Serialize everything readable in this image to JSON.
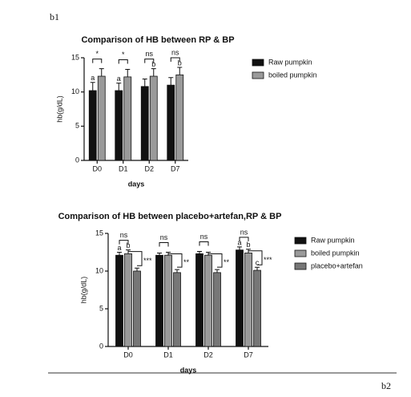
{
  "figure_label_top": "b1",
  "figure_label_bottom": "b2",
  "chart_data": [
    {
      "type": "bar",
      "title": "Comparison of HB between RP & BP",
      "y_label": "hb(g/dL)",
      "x_label": "days",
      "categories": [
        "D0",
        "D1",
        "D2",
        "D7"
      ],
      "series": [
        {
          "name": "Raw pumpkin",
          "color": "#111111",
          "values": [
            10.2,
            10.2,
            10.8,
            11.0
          ],
          "errors": [
            1.2,
            1.1,
            1.1,
            1.1
          ],
          "letters": [
            "a",
            "a",
            null,
            null
          ]
        },
        {
          "name": "boiled pumpkin",
          "color": "#9a9a9a",
          "values": [
            12.3,
            12.2,
            12.3,
            12.5
          ],
          "errors": [
            1.1,
            1.1,
            1.1,
            1.1
          ],
          "letters": [
            null,
            null,
            "b",
            "b"
          ]
        }
      ],
      "significance": [
        "*",
        "*",
        "ns",
        "ns"
      ],
      "ylim": [
        0,
        15
      ],
      "yticks": [
        0,
        5,
        10,
        15
      ]
    },
    {
      "type": "bar",
      "title": "Comparison of HB between placebo+artefan,RP & BP",
      "y_label": "hb(g/dL)",
      "x_label": "days",
      "categories": [
        "D0",
        "D1",
        "D2",
        "D7"
      ],
      "series": [
        {
          "name": "Raw pumpkin",
          "color": "#111111",
          "values": [
            12.1,
            12.1,
            12.3,
            12.8
          ],
          "errors": [
            0.4,
            0.3,
            0.3,
            0.4
          ],
          "letters": [
            "a",
            null,
            null,
            "a"
          ]
        },
        {
          "name": "boiled pumpkin",
          "color": "#9a9a9a",
          "values": [
            12.3,
            12.1,
            12.1,
            12.4
          ],
          "errors": [
            0.5,
            0.4,
            0.4,
            0.5
          ],
          "letters": [
            "b",
            null,
            null,
            "b"
          ]
        },
        {
          "name": "placebo+artefan",
          "color": "#777777",
          "values": [
            10.0,
            9.8,
            9.8,
            10.1
          ],
          "errors": [
            0.4,
            0.4,
            0.4,
            0.4
          ],
          "letters": [
            null,
            null,
            null,
            "c"
          ]
        }
      ],
      "significance": [
        "ns",
        "ns",
        "ns",
        "ns"
      ],
      "significance_vs_placebo": [
        "***",
        "**",
        "**",
        "***"
      ],
      "ylim": [
        0,
        15
      ],
      "yticks": [
        0,
        5,
        10,
        15
      ]
    }
  ]
}
